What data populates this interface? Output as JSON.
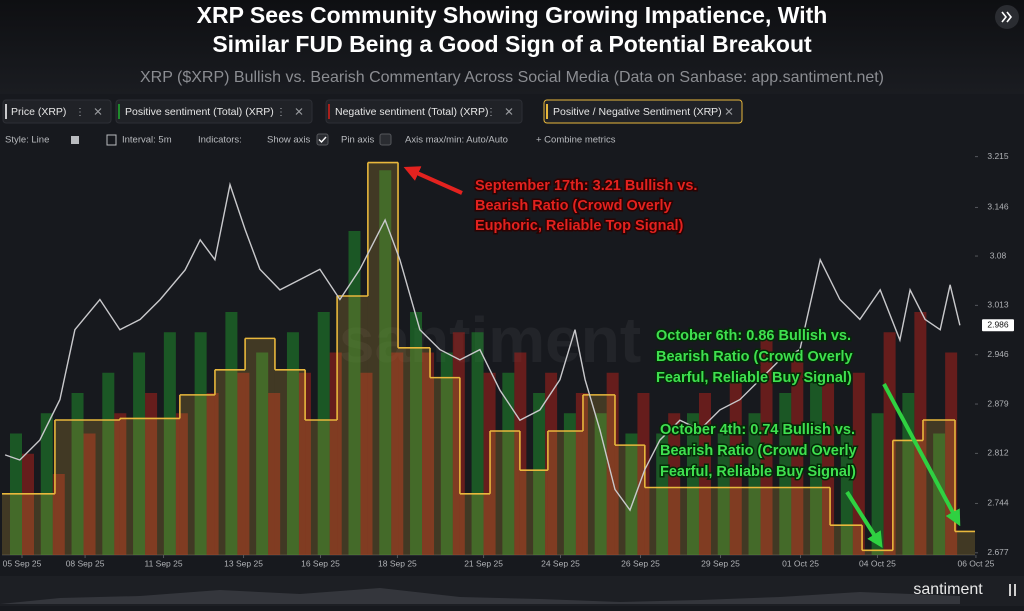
{
  "chart_data": {
    "type": "line",
    "title": [
      "XRP Sees Community Showing Growing Impatience, With",
      "Similar FUD Being a Good Sign of a Potential Breakout"
    ],
    "subtitle": "XRP ($XRP) Bullish vs. Bearish Commentary Across Social Media (Data on Sanbase: app.santiment.net)",
    "toolbar": [
      "Style: Line",
      "Interval: 5m",
      "Indicators:",
      "Show axis",
      "Pin axis",
      "Axis max/min: Auto/Auto",
      "+ Combine metrics"
    ],
    "watermark": "santiment",
    "xlim": [
      -0.65,
      30.97
    ],
    "xticks": [
      {
        "value": 0,
        "label": "05 Sep 25"
      },
      {
        "value": 2.05,
        "label": "08 Sep 25"
      },
      {
        "value": 4.6,
        "label": "11 Sep 25"
      },
      {
        "value": 7.2,
        "label": "13 Sep 25"
      },
      {
        "value": 9.7,
        "label": "16 Sep 25"
      },
      {
        "value": 12.2,
        "label": "18 Sep 25"
      },
      {
        "value": 15.0,
        "label": "21 Sep 25"
      },
      {
        "value": 17.5,
        "label": "24 Sep 25"
      },
      {
        "value": 20.1,
        "label": "26 Sep 25"
      },
      {
        "value": 22.7,
        "label": "29 Sep 25"
      },
      {
        "value": 25.3,
        "label": "01 Oct 25"
      },
      {
        "value": 27.8,
        "label": "04 Oct 25"
      },
      {
        "value": 31.0,
        "label": "06 Oct 25"
      }
    ],
    "ylim": [
      2.674,
      3.224
    ],
    "yticks": [
      3.215,
      3.146,
      3.08,
      3.013,
      2.946,
      2.879,
      2.812,
      2.744,
      2.677
    ],
    "y2lim": [
      0.71,
      3.29
    ],
    "y3lim": [
      0,
      100
    ],
    "series": [
      {
        "name": "Price (XRP)",
        "style": "line",
        "color": "#c9c9cc",
        "axis": "y",
        "x": [
          -0.55,
          -0.07,
          0.58,
          1.23,
          1.72,
          2.53,
          3.18,
          3.84,
          4.49,
          5.3,
          5.79,
          6.27,
          6.76,
          7.25,
          7.73,
          8.38,
          9.03,
          9.68,
          10.33,
          10.98,
          11.8,
          12.28,
          12.93,
          13.58,
          14.23,
          14.88,
          15.53,
          16.18,
          16.83,
          17.48,
          17.97,
          18.3,
          18.78,
          19.27,
          19.76,
          20.24,
          20.73,
          21.38,
          22.03,
          22.68,
          23.33,
          23.98,
          24.63,
          25.28,
          25.94,
          26.58,
          27.23,
          27.89,
          28.53,
          28.86,
          29.35,
          29.84,
          30.16,
          30.48
        ],
        "values": [
          2.81,
          2.803,
          2.83,
          2.885,
          2.98,
          3.021,
          2.98,
          2.994,
          3.021,
          3.061,
          3.102,
          3.075,
          3.177,
          3.116,
          3.062,
          3.034,
          3.048,
          3.062,
          3.021,
          3.062,
          3.129,
          3.075,
          2.98,
          2.953,
          2.939,
          2.953,
          2.898,
          2.857,
          2.871,
          2.912,
          2.98,
          2.912,
          2.844,
          2.763,
          2.735,
          2.79,
          2.83,
          2.857,
          2.844,
          2.871,
          2.885,
          2.912,
          2.939,
          2.953,
          3.075,
          3.021,
          2.994,
          3.034,
          2.966,
          3.034,
          2.994,
          2.98,
          3.041,
          2.986
        ]
      },
      {
        "name": "Positive sentiment (Total) (XRP)",
        "style": "bar",
        "color": "#1f8a2c",
        "axis": "y3",
        "x": [
          0,
          1,
          2,
          3,
          4,
          5,
          6,
          7,
          8,
          9,
          10,
          11,
          12,
          13,
          14,
          15,
          16,
          17,
          18,
          19,
          20,
          21,
          22,
          23,
          24,
          25,
          26,
          27,
          28,
          29,
          30
        ],
        "values": [
          30,
          35,
          40,
          45,
          50,
          55,
          55,
          60,
          50,
          55,
          60,
          80,
          95,
          60,
          50,
          55,
          45,
          40,
          35,
          35,
          30,
          30,
          35,
          30,
          35,
          40,
          45,
          30,
          35,
          40,
          30
        ]
      },
      {
        "name": "Negative sentiment (Total) (XRP)",
        "style": "bar",
        "color": "#a8201c",
        "axis": "y3",
        "x": [
          0,
          1,
          2,
          3,
          4,
          5,
          6,
          7,
          8,
          9,
          10,
          11,
          12,
          13,
          14,
          15,
          16,
          17,
          18,
          19,
          20,
          21,
          22,
          23,
          24,
          25,
          26,
          27,
          28,
          29,
          30
        ],
        "values": [
          25,
          20,
          30,
          35,
          40,
          35,
          40,
          45,
          40,
          45,
          50,
          45,
          50,
          50,
          55,
          45,
          50,
          45,
          40,
          45,
          40,
          35,
          40,
          45,
          55,
          50,
          45,
          45,
          55,
          60,
          50
        ]
      },
      {
        "name": "Positive / Negative Sentiment (XRP)",
        "style": "step",
        "color": "#e9b83c",
        "axis": "y2",
        "x": [
          -0.65,
          1.07,
          3.18,
          5.13,
          6.27,
          7.25,
          8.22,
          9.2,
          10.24,
          11.24,
          12.22,
          13.26,
          14.23,
          15.21,
          16.18,
          17.09,
          18.23,
          19.27,
          20.24,
          26.26,
          27.3,
          28.3,
          29.28,
          30.32
        ],
        "values": [
          1.1,
          1.57,
          1.58,
          1.73,
          1.89,
          2.09,
          1.89,
          1.57,
          2.36,
          3.21,
          2.03,
          1.84,
          1.1,
          1.5,
          1.25,
          1.5,
          1.73,
          1.41,
          1.14,
          0.9,
          0.74,
          1.44,
          1.57,
          0.86
        ]
      }
    ],
    "annotations": [
      {
        "lines": [
          "September 17th: 3.21 Bullish vs.",
          "Bearish Ratio (Crowd Overly",
          "Euphoric, Reliable Top Signal)"
        ]
      },
      {
        "lines": [
          "October 6th: 0.86 Bullish vs.",
          "Bearish Ratio (Crowd Overly",
          "Fearful, Reliable Buy Signal)"
        ]
      },
      {
        "lines": [
          "October 4th: 0.74 Bullish vs.",
          "Bearish Ratio (Crowd Overly",
          "Fearful, Reliable Buy Signal)"
        ]
      }
    ]
  }
}
